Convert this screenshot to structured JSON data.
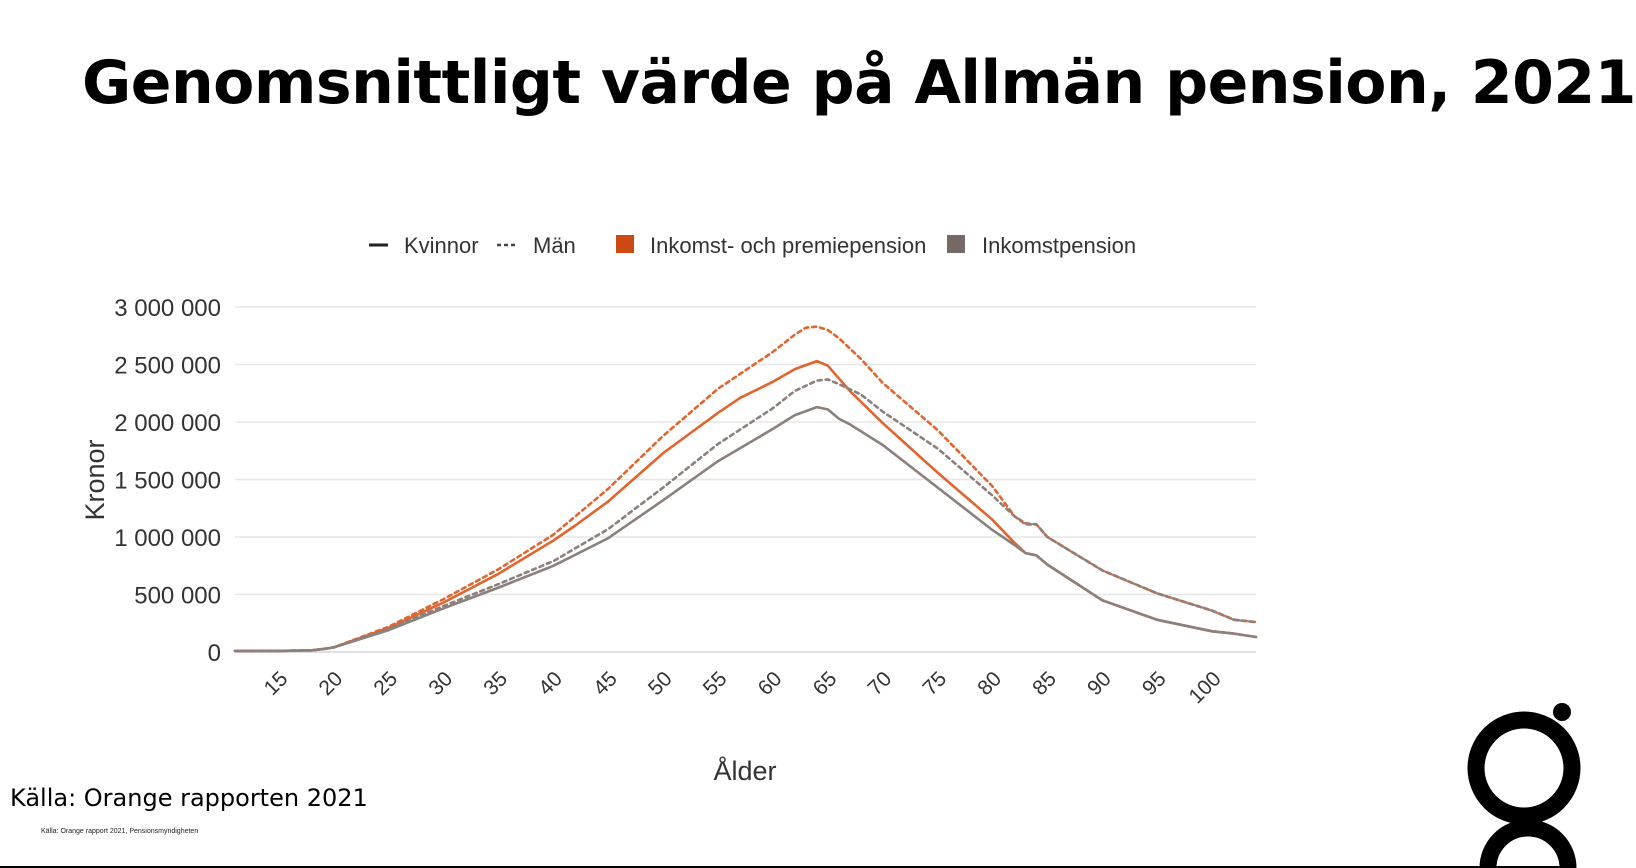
{
  "slide": {
    "title": "Genomsnittligt värde på Allmän pension, 2021",
    "source": "Källa: Orange rapporten 2021",
    "footnote": "Källa: Orange rapport 2021, Pensionsmyndigheten"
  },
  "logo": {
    "icon": "orange-g-logo-icon",
    "color": "#000000"
  },
  "chart_data": {
    "type": "line",
    "title": "",
    "xlabel": "Ålder",
    "ylabel": "Kronor",
    "xlim": [
      11,
      104
    ],
    "ylim": [
      0,
      3000000
    ],
    "x_ticks": [
      15,
      20,
      25,
      30,
      35,
      40,
      45,
      50,
      55,
      60,
      65,
      70,
      75,
      80,
      85,
      90,
      95,
      100
    ],
    "y_ticks": [
      0,
      500000,
      1000000,
      1500000,
      2000000,
      2500000,
      3000000
    ],
    "y_tick_labels": [
      "0",
      "500 000",
      "1 000 000",
      "1 500 000",
      "2 000 000",
      "2 500 000",
      "3 000 000"
    ],
    "grid": true,
    "legend": {
      "placement": "top",
      "line_styles": [
        {
          "label": "Kvinnor",
          "style": "solid"
        },
        {
          "label": "Män",
          "style": "dotted"
        }
      ],
      "colors": [
        {
          "label": "Inkomst- och premiepension",
          "color": "#cc4a12"
        },
        {
          "label": "Inkomstpension",
          "color": "#746965"
        }
      ]
    },
    "colors": {
      "orange": "#e0652f",
      "gray": "#8b807c",
      "grid": "#e6e6e6"
    },
    "series": [
      {
        "group": "Inkomst- och premiepension",
        "gender": "Kvinnor",
        "style": "solid",
        "color": "#e0652f",
        "x": [
          11,
          15,
          18,
          19,
          20,
          25,
          30,
          35,
          40,
          42,
          45,
          50,
          52,
          55,
          57,
          60,
          62,
          64,
          65,
          66,
          67,
          70,
          75,
          80,
          82,
          83,
          84,
          85,
          90,
          95,
          100,
          102,
          104
        ],
        "values": [
          10000,
          10000,
          15000,
          25000,
          40000,
          210000,
          430000,
          680000,
          970000,
          1100000,
          1310000,
          1730000,
          1870000,
          2080000,
          2210000,
          2350000,
          2460000,
          2530000,
          2490000,
          2380000,
          2270000,
          1990000,
          1560000,
          1150000,
          950000,
          860000,
          840000,
          760000,
          450000,
          280000,
          180000,
          160000,
          130000
        ]
      },
      {
        "group": "Inkomst- och premiepension",
        "gender": "Män",
        "style": "dotted",
        "color": "#e0652f",
        "x": [
          11,
          15,
          18,
          19,
          20,
          25,
          30,
          35,
          40,
          45,
          50,
          55,
          60,
          62,
          63,
          64,
          65,
          66,
          68,
          70,
          75,
          80,
          82,
          83,
          84,
          85,
          90,
          95,
          100,
          102,
          104
        ],
        "values": [
          10000,
          10000,
          15000,
          25000,
          40000,
          220000,
          460000,
          720000,
          1020000,
          1420000,
          1880000,
          2290000,
          2610000,
          2760000,
          2820000,
          2830000,
          2800000,
          2730000,
          2550000,
          2340000,
          1930000,
          1440000,
          1180000,
          1110000,
          1110000,
          1000000,
          710000,
          510000,
          360000,
          280000,
          260000
        ]
      },
      {
        "group": "Inkomstpension",
        "gender": "Kvinnor",
        "style": "solid",
        "color": "#8b807c",
        "x": [
          11,
          15,
          18,
          19,
          20,
          25,
          30,
          35,
          40,
          45,
          50,
          55,
          60,
          62,
          64,
          65,
          66,
          67,
          70,
          75,
          80,
          82,
          83,
          84,
          85,
          90,
          95,
          100,
          102,
          104
        ],
        "values": [
          10000,
          10000,
          15000,
          25000,
          40000,
          190000,
          380000,
          560000,
          750000,
          990000,
          1320000,
          1660000,
          1940000,
          2060000,
          2130000,
          2110000,
          2030000,
          1980000,
          1800000,
          1430000,
          1060000,
          930000,
          860000,
          840000,
          760000,
          450000,
          280000,
          180000,
          160000,
          130000
        ]
      },
      {
        "group": "Inkomstpension",
        "gender": "Män",
        "style": "dotted",
        "color": "#8b807c",
        "x": [
          11,
          15,
          18,
          19,
          20,
          25,
          30,
          35,
          40,
          45,
          50,
          55,
          60,
          62,
          64,
          65,
          66,
          68,
          70,
          75,
          80,
          82,
          83,
          84,
          85,
          90,
          95,
          100,
          102,
          104
        ],
        "values": [
          10000,
          10000,
          15000,
          25000,
          40000,
          200000,
          400000,
          590000,
          790000,
          1070000,
          1430000,
          1810000,
          2120000,
          2270000,
          2360000,
          2370000,
          2330000,
          2240000,
          2090000,
          1770000,
          1360000,
          1180000,
          1120000,
          1110000,
          1000000,
          710000,
          510000,
          360000,
          280000,
          260000
        ]
      }
    ]
  }
}
